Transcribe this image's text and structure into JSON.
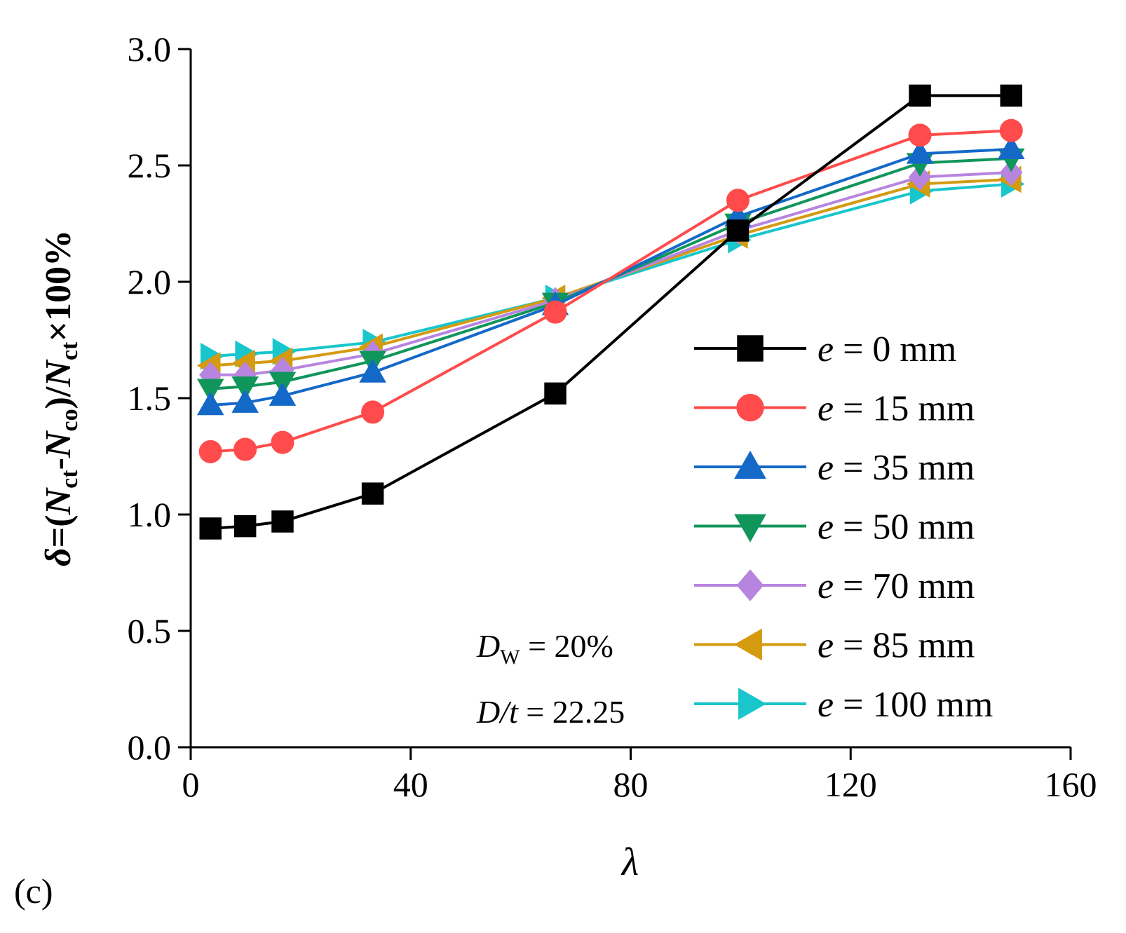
{
  "chart_data": {
    "type": "line",
    "panel_label": "(c)",
    "xlabel": "λ",
    "ylabel": {
      "delta": "δ",
      "eq": "=(",
      "n1": "N",
      "s1": "ct",
      "dash": "-",
      "n2": "N",
      "s2": "co",
      "close": ")/",
      "n3": "N",
      "s3": "ct",
      "tail": "×100%"
    },
    "xlim": [
      0,
      160
    ],
    "ylim": [
      0,
      3
    ],
    "x_ticks": [
      "0",
      "40",
      "80",
      "120",
      "160"
    ],
    "y_ticks": [
      "0.0",
      "0.5",
      "1.0",
      "1.5",
      "2.0",
      "2.5",
      "3.0"
    ],
    "x": [
      3.6,
      9.9,
      16.7,
      33.1,
      66.3,
      99.5,
      132.6,
      149.2
    ],
    "series": [
      {
        "name": "e = 0 mm",
        "var": "e",
        "rest": " = 0 mm",
        "color": "#000000",
        "marker": "square",
        "values": [
          0.94,
          0.95,
          0.97,
          1.09,
          1.52,
          2.22,
          2.8,
          2.8
        ]
      },
      {
        "name": "e = 15 mm",
        "var": "e",
        "rest": " = 15 mm",
        "color": "#ff4b4b",
        "marker": "circle",
        "values": [
          1.27,
          1.28,
          1.31,
          1.44,
          1.87,
          2.35,
          2.63,
          2.65
        ]
      },
      {
        "name": "e = 35 mm",
        "var": "e",
        "rest": " = 35 mm",
        "color": "#1469c8",
        "marker": "triangle-up",
        "values": [
          1.47,
          1.48,
          1.51,
          1.61,
          1.9,
          2.28,
          2.55,
          2.57
        ]
      },
      {
        "name": "e = 50 mm",
        "var": "e",
        "rest": " = 50 mm",
        "color": "#10955a",
        "marker": "triangle-down",
        "values": [
          1.54,
          1.55,
          1.57,
          1.66,
          1.91,
          2.25,
          2.51,
          2.53
        ]
      },
      {
        "name": "e = 70 mm",
        "var": "e",
        "rest": " = 70 mm",
        "color": "#b785e0",
        "marker": "diamond",
        "values": [
          1.6,
          1.6,
          1.62,
          1.69,
          1.92,
          2.22,
          2.45,
          2.47
        ]
      },
      {
        "name": "e = 85 mm",
        "var": "e",
        "rest": " = 85 mm",
        "color": "#d49a10",
        "marker": "triangle-left",
        "values": [
          1.64,
          1.65,
          1.66,
          1.72,
          1.93,
          2.2,
          2.42,
          2.44
        ]
      },
      {
        "name": "e = 100 mm",
        "var": "e",
        "rest": " = 100 mm",
        "color": "#18c6cc",
        "marker": "triangle-right",
        "values": [
          1.68,
          1.69,
          1.7,
          1.74,
          1.93,
          2.18,
          2.39,
          2.42
        ]
      }
    ],
    "annotations": {
      "dw": {
        "v": "D",
        "sub": "W",
        "rest": " = 20%"
      },
      "dt": {
        "v": "D/t",
        "rest": " = 22.25"
      }
    },
    "legend_position": "bottom-right"
  }
}
